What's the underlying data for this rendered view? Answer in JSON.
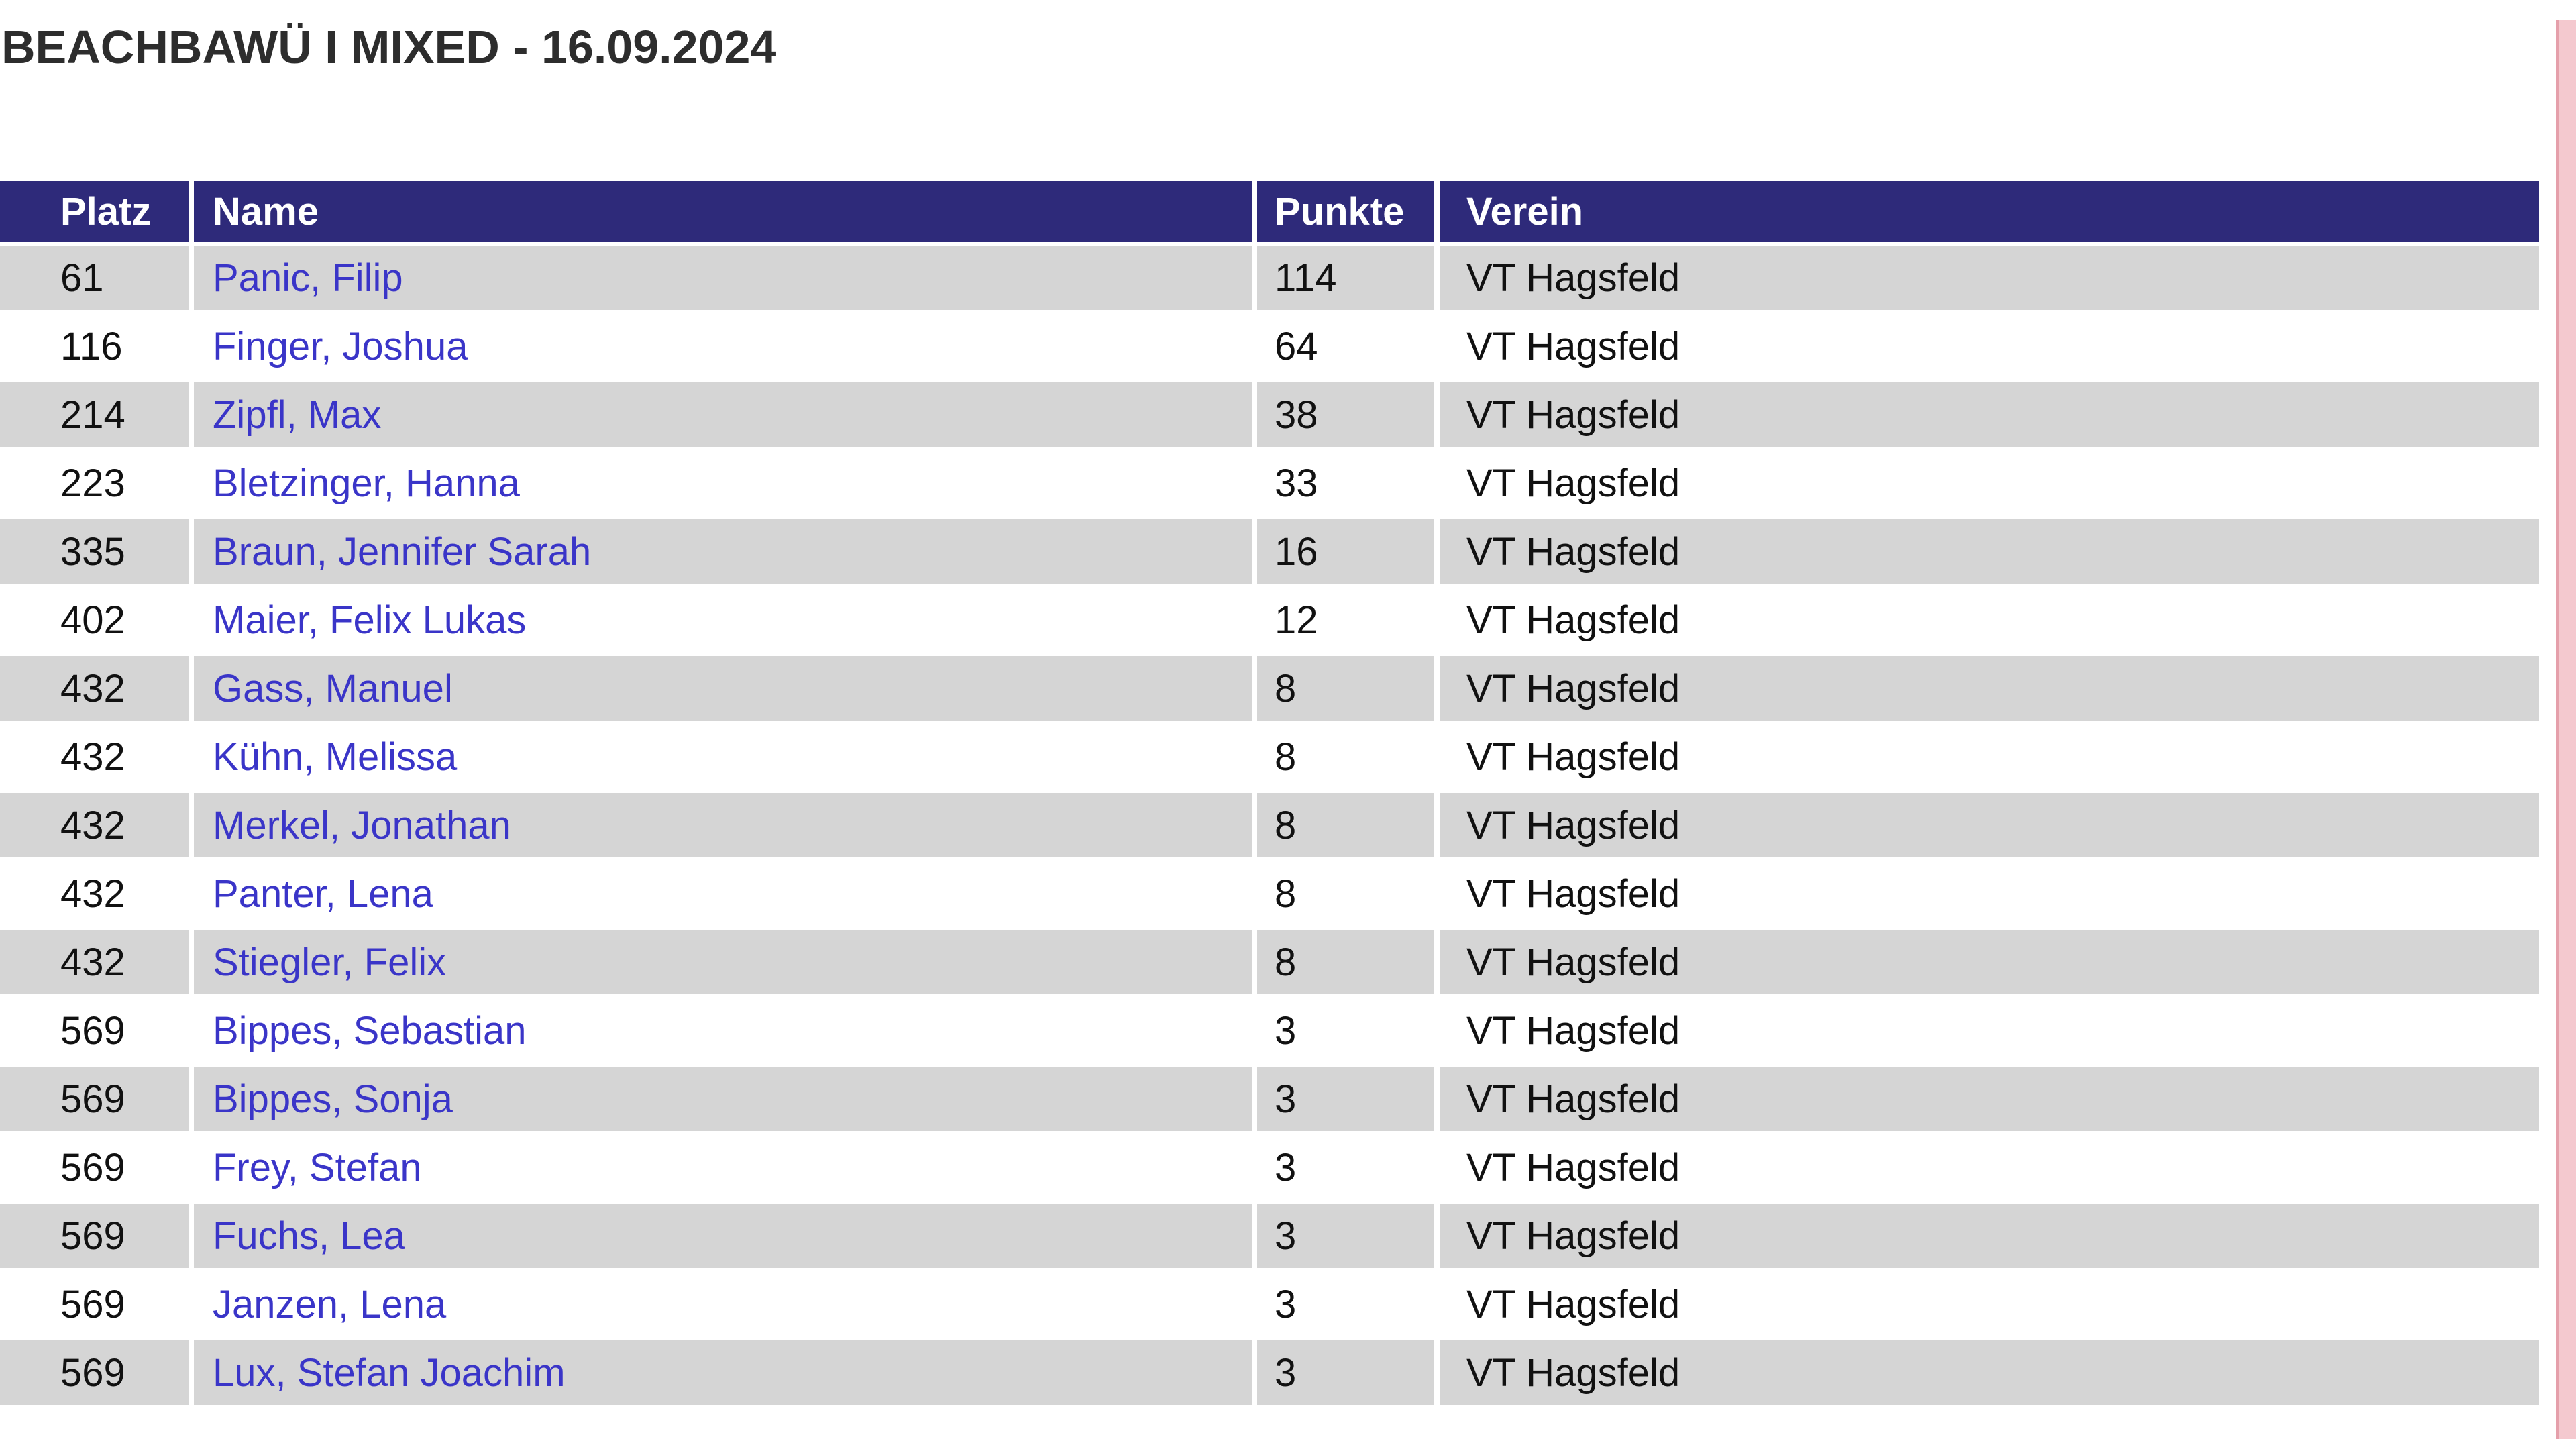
{
  "page": {
    "title": "BEACHBAWÜ I MIXED - 16.09.2024"
  },
  "table": {
    "headers": [
      "Platz",
      "Name",
      "Punkte",
      "Verein"
    ],
    "rows": [
      {
        "platz": "61",
        "name": "Panic, Filip",
        "punkte": "114",
        "verein": "VT Hagsfeld"
      },
      {
        "platz": "116",
        "name": "Finger, Joshua",
        "punkte": "64",
        "verein": "VT Hagsfeld"
      },
      {
        "platz": "214",
        "name": "Zipfl, Max",
        "punkte": "38",
        "verein": "VT Hagsfeld"
      },
      {
        "platz": "223",
        "name": "Bletzinger, Hanna",
        "punkte": "33",
        "verein": "VT Hagsfeld"
      },
      {
        "platz": "335",
        "name": "Braun, Jennifer Sarah",
        "punkte": "16",
        "verein": "VT Hagsfeld"
      },
      {
        "platz": "402",
        "name": "Maier, Felix Lukas",
        "punkte": "12",
        "verein": "VT Hagsfeld"
      },
      {
        "platz": "432",
        "name": "Gass, Manuel",
        "punkte": "8",
        "verein": "VT Hagsfeld"
      },
      {
        "platz": "432",
        "name": "Kühn, Melissa",
        "punkte": "8",
        "verein": "VT Hagsfeld"
      },
      {
        "platz": "432",
        "name": "Merkel, Jonathan",
        "punkte": "8",
        "verein": "VT Hagsfeld"
      },
      {
        "platz": "432",
        "name": "Panter, Lena",
        "punkte": "8",
        "verein": "VT Hagsfeld"
      },
      {
        "platz": "432",
        "name": "Stiegler, Felix",
        "punkte": "8",
        "verein": "VT Hagsfeld"
      },
      {
        "platz": "569",
        "name": "Bippes, Sebastian",
        "punkte": "3",
        "verein": "VT Hagsfeld"
      },
      {
        "platz": "569",
        "name": "Bippes, Sonja",
        "punkte": "3",
        "verein": "VT Hagsfeld"
      },
      {
        "platz": "569",
        "name": "Frey, Stefan",
        "punkte": "3",
        "verein": "VT Hagsfeld"
      },
      {
        "platz": "569",
        "name": "Fuchs, Lea",
        "punkte": "3",
        "verein": "VT Hagsfeld"
      },
      {
        "platz": "569",
        "name": "Janzen, Lena",
        "punkte": "3",
        "verein": "VT Hagsfeld"
      },
      {
        "platz": "569",
        "name": "Lux, Stefan Joachim",
        "punkte": "3",
        "verein": "VT Hagsfeld"
      }
    ]
  },
  "colors": {
    "header_bg": "#2e2a7a",
    "row_alt_bg": "#d5d5d5",
    "link": "#3a35c8",
    "accent_strip": "#f4c9cf"
  }
}
